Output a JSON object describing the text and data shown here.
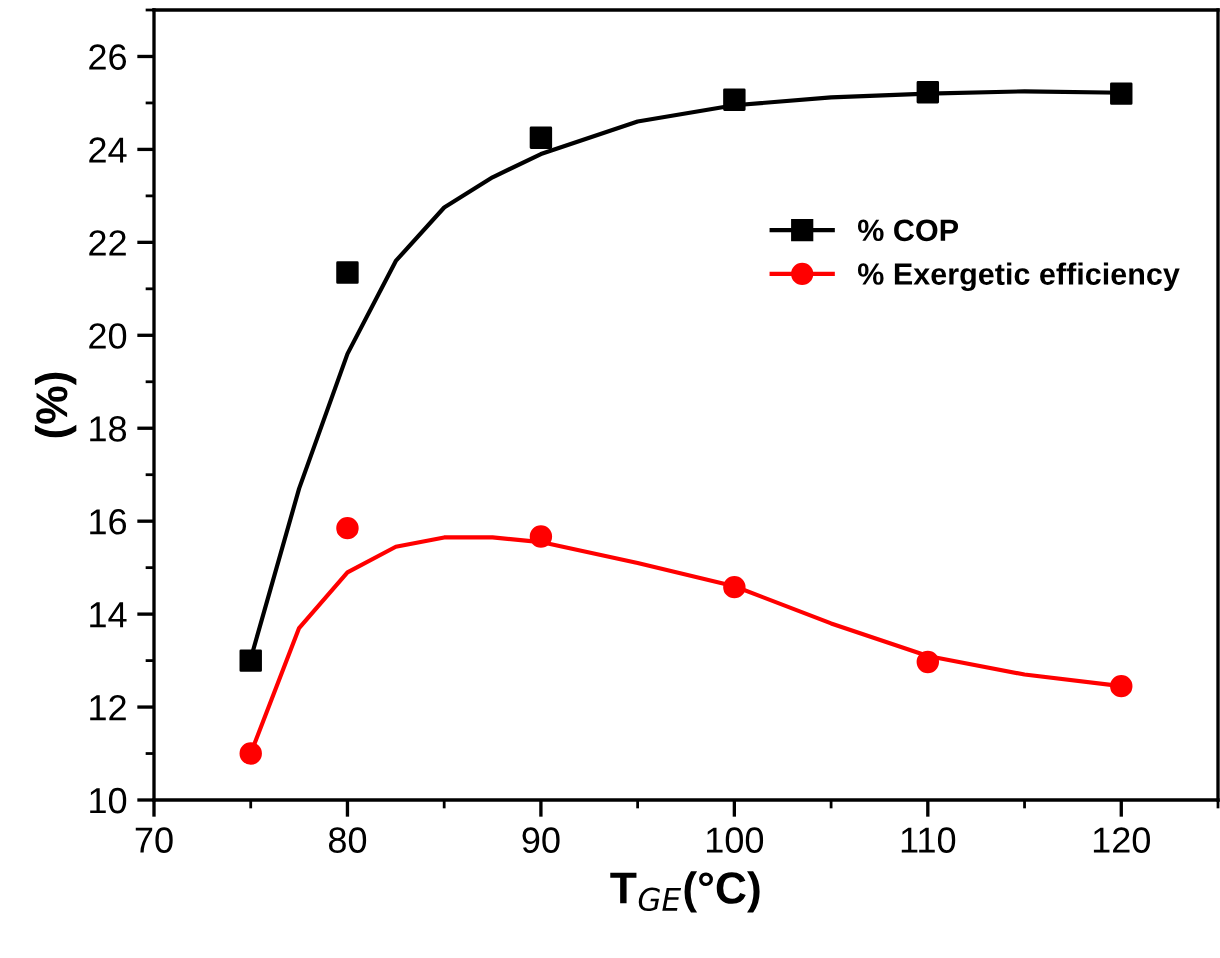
{
  "chart_data": {
    "type": "scatter",
    "xlabel": "T$_{GE}$(°C)",
    "ylabel": "(%)",
    "x": [
      75,
      80,
      90,
      100,
      110,
      120
    ],
    "series": [
      {
        "name": "% COP",
        "color": "#000000",
        "marker": "square",
        "values": [
          13.0,
          21.35,
          24.25,
          25.07,
          25.23,
          25.2
        ]
      },
      {
        "name": "% Exergetic efficiency",
        "color": "#ff0000",
        "marker": "circle",
        "values": [
          11.0,
          15.85,
          15.67,
          14.58,
          12.97,
          12.45
        ]
      },
      {
        "type": "line",
        "color": "#000000",
        "marker": "none",
        "x": [
          75,
          77.5,
          80,
          82.5,
          85,
          87.5,
          90,
          95,
          100,
          105,
          110,
          115,
          120
        ],
        "values": [
          13.04,
          16.7,
          19.6,
          21.6,
          22.75,
          23.4,
          23.9,
          24.6,
          24.95,
          25.12,
          25.2,
          25.25,
          25.22
        ]
      },
      {
        "type": "line",
        "color": "#ff0000",
        "marker": "none",
        "x": [
          75,
          77.5,
          80,
          82.5,
          85,
          87.5,
          90,
          95,
          100,
          105,
          110,
          115,
          120
        ],
        "values": [
          11.0,
          13.7,
          14.9,
          15.45,
          15.65,
          15.65,
          15.55,
          15.1,
          14.6,
          13.8,
          13.1,
          12.7,
          12.45
        ]
      }
    ],
    "xlim": [
      70,
      125
    ],
    "xticks": [
      70,
      80,
      90,
      100,
      110,
      120
    ],
    "ylim": [
      10,
      27
    ],
    "yticks": [
      10,
      12,
      14,
      16,
      18,
      20,
      22,
      24,
      26
    ],
    "grid": false,
    "legend": "right"
  }
}
